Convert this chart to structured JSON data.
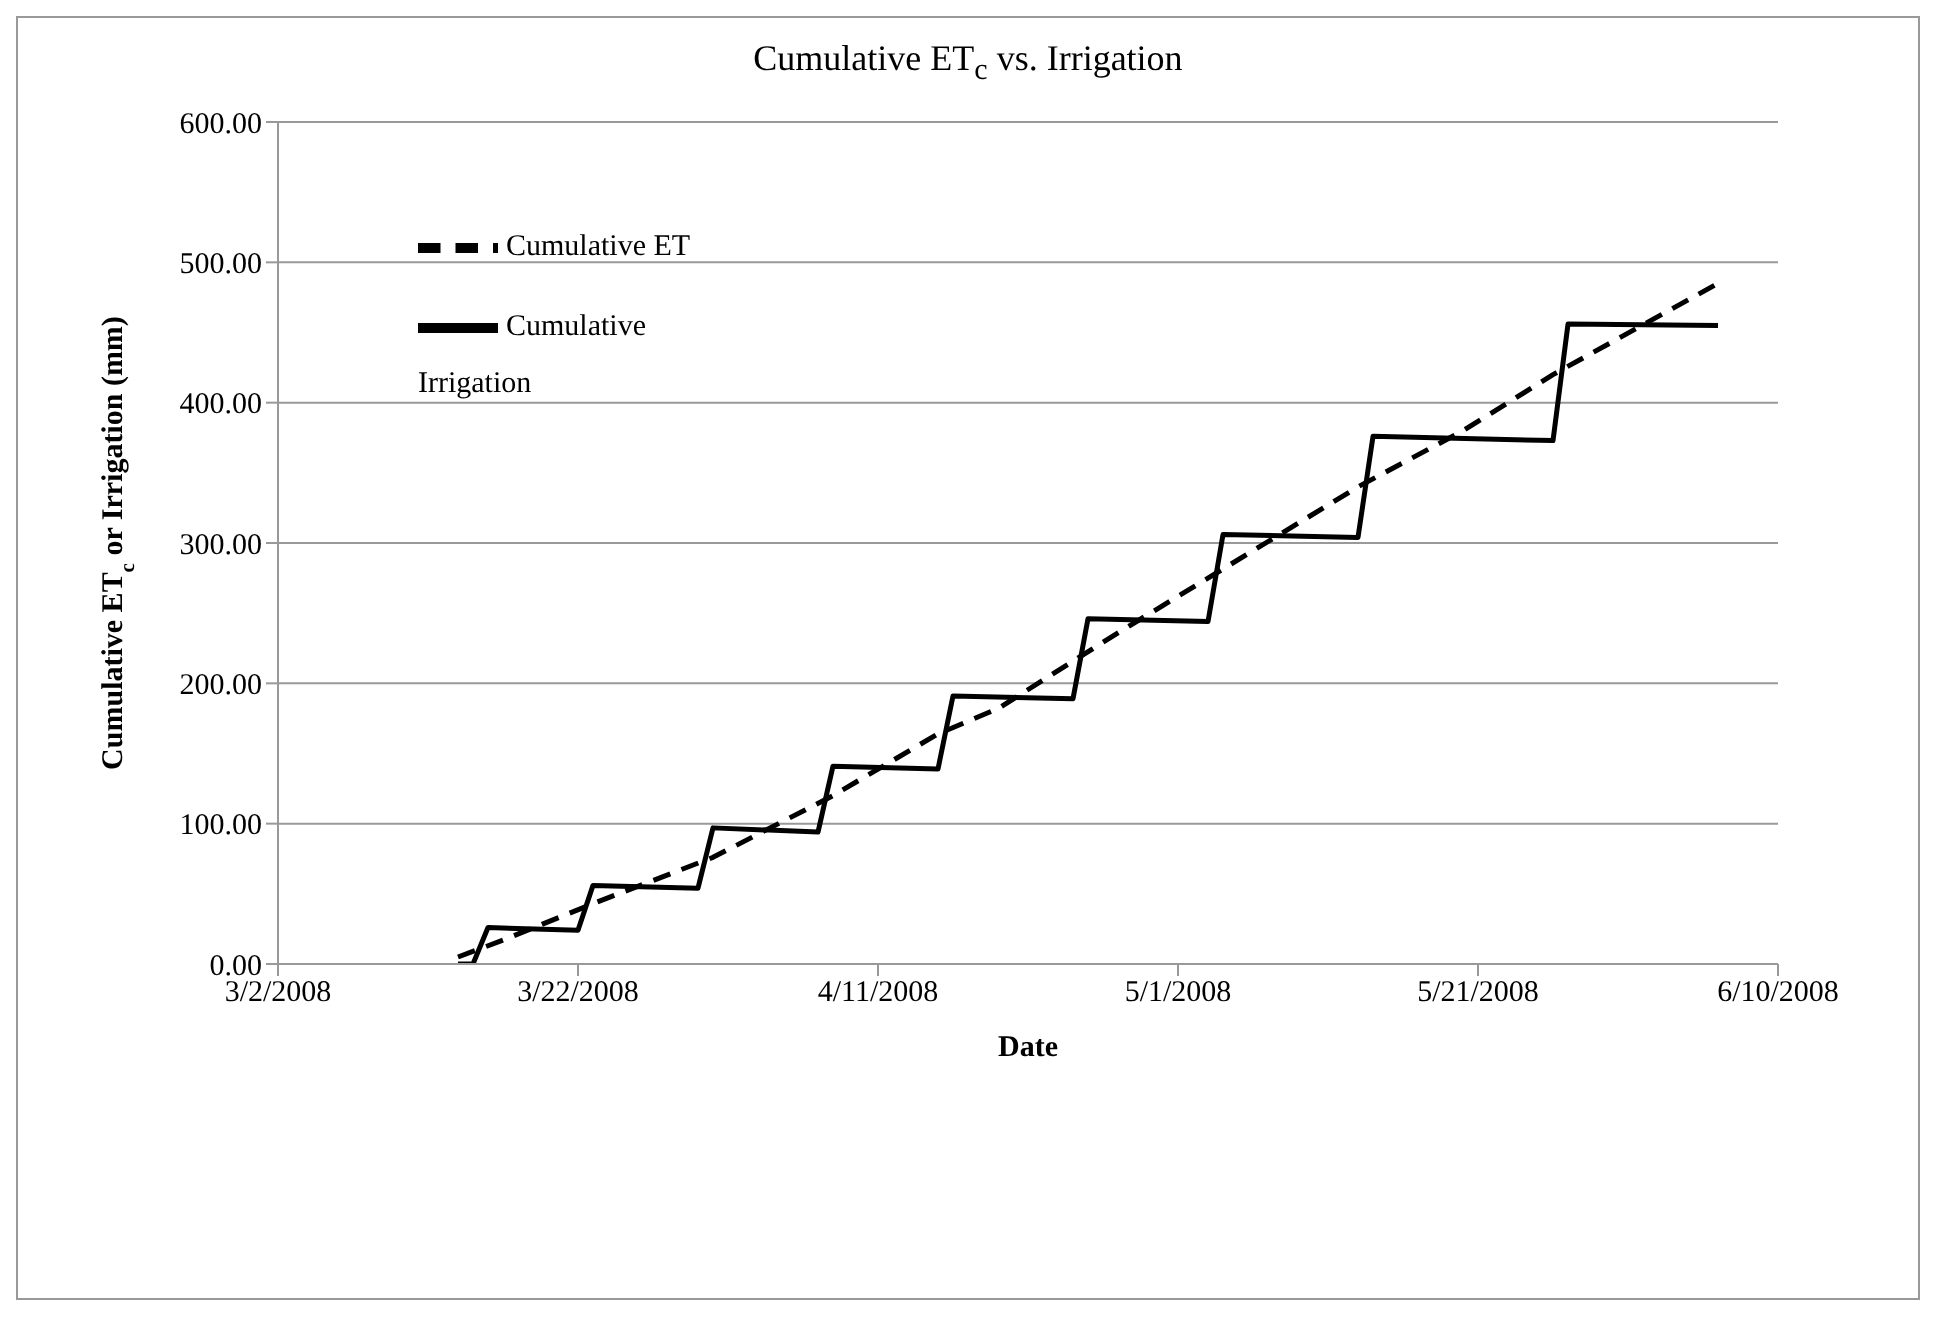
{
  "chart_data": {
    "type": "line",
    "title": "Cumulative ET$_{c}$ vs. Irrigation",
    "xlabel": "Date",
    "ylabel": "Cumulative ET$_{c}$ or Irrigation (mm)",
    "series": [
      {
        "name": "Cumulative ET",
        "color": "#000000",
        "line_style": "dashed",
        "x": [
          "2008-03-14",
          "2008-03-17",
          "2008-03-23",
          "2008-03-31",
          "2008-04-08",
          "2008-04-15",
          "2008-04-19",
          "2008-04-27",
          "2008-05-03",
          "2008-05-13",
          "2008-05-20",
          "2008-05-26",
          "2008-06-06"
        ],
        "values": [
          5,
          17,
          43,
          76,
          120,
          164,
          182,
          236,
          275,
          340,
          380,
          420,
          485
        ]
      },
      {
        "name": "Cumulative Irrigation",
        "color": "#000000",
        "line_style": "solid",
        "x": [
          "2008-03-14",
          "2008-03-15",
          "2008-03-16",
          "2008-03-22",
          "2008-03-23",
          "2008-03-30",
          "2008-03-31",
          "2008-04-07",
          "2008-04-08",
          "2008-04-15",
          "2008-04-16",
          "2008-04-24",
          "2008-04-25",
          "2008-05-03",
          "2008-05-04",
          "2008-05-13",
          "2008-05-14",
          "2008-05-26",
          "2008-05-27",
          "2008-06-06"
        ],
        "values": [
          0,
          0,
          26,
          24,
          56,
          54,
          97,
          94,
          141,
          139,
          191,
          189,
          246,
          244,
          306,
          304,
          376,
          373,
          456,
          455
        ]
      }
    ],
    "xlim": [
      "2008-03-02",
      "2008-06-10"
    ],
    "xticks": [
      {
        "value": "2008-03-02",
        "label": "3/2/2008"
      },
      {
        "value": "2008-03-22",
        "label": "3/22/2008"
      },
      {
        "value": "2008-04-11",
        "label": "4/11/2008"
      },
      {
        "value": "2008-05-01",
        "label": "5/1/2008"
      },
      {
        "value": "2008-05-21",
        "label": "5/21/2008"
      },
      {
        "value": "2008-06-10",
        "label": "6/10/2008"
      }
    ],
    "ylim": [
      0,
      600
    ],
    "yticks": [
      {
        "value": 0,
        "label": "0.00"
      },
      {
        "value": 100,
        "label": "100.00"
      },
      {
        "value": 200,
        "label": "200.00"
      },
      {
        "value": 300,
        "label": "300.00"
      },
      {
        "value": 400,
        "label": "400.00"
      },
      {
        "value": 500,
        "label": "500.00"
      },
      {
        "value": 600,
        "label": "600.00"
      }
    ],
    "grid": "y",
    "legend": "top left",
    "marker": "none"
  }
}
